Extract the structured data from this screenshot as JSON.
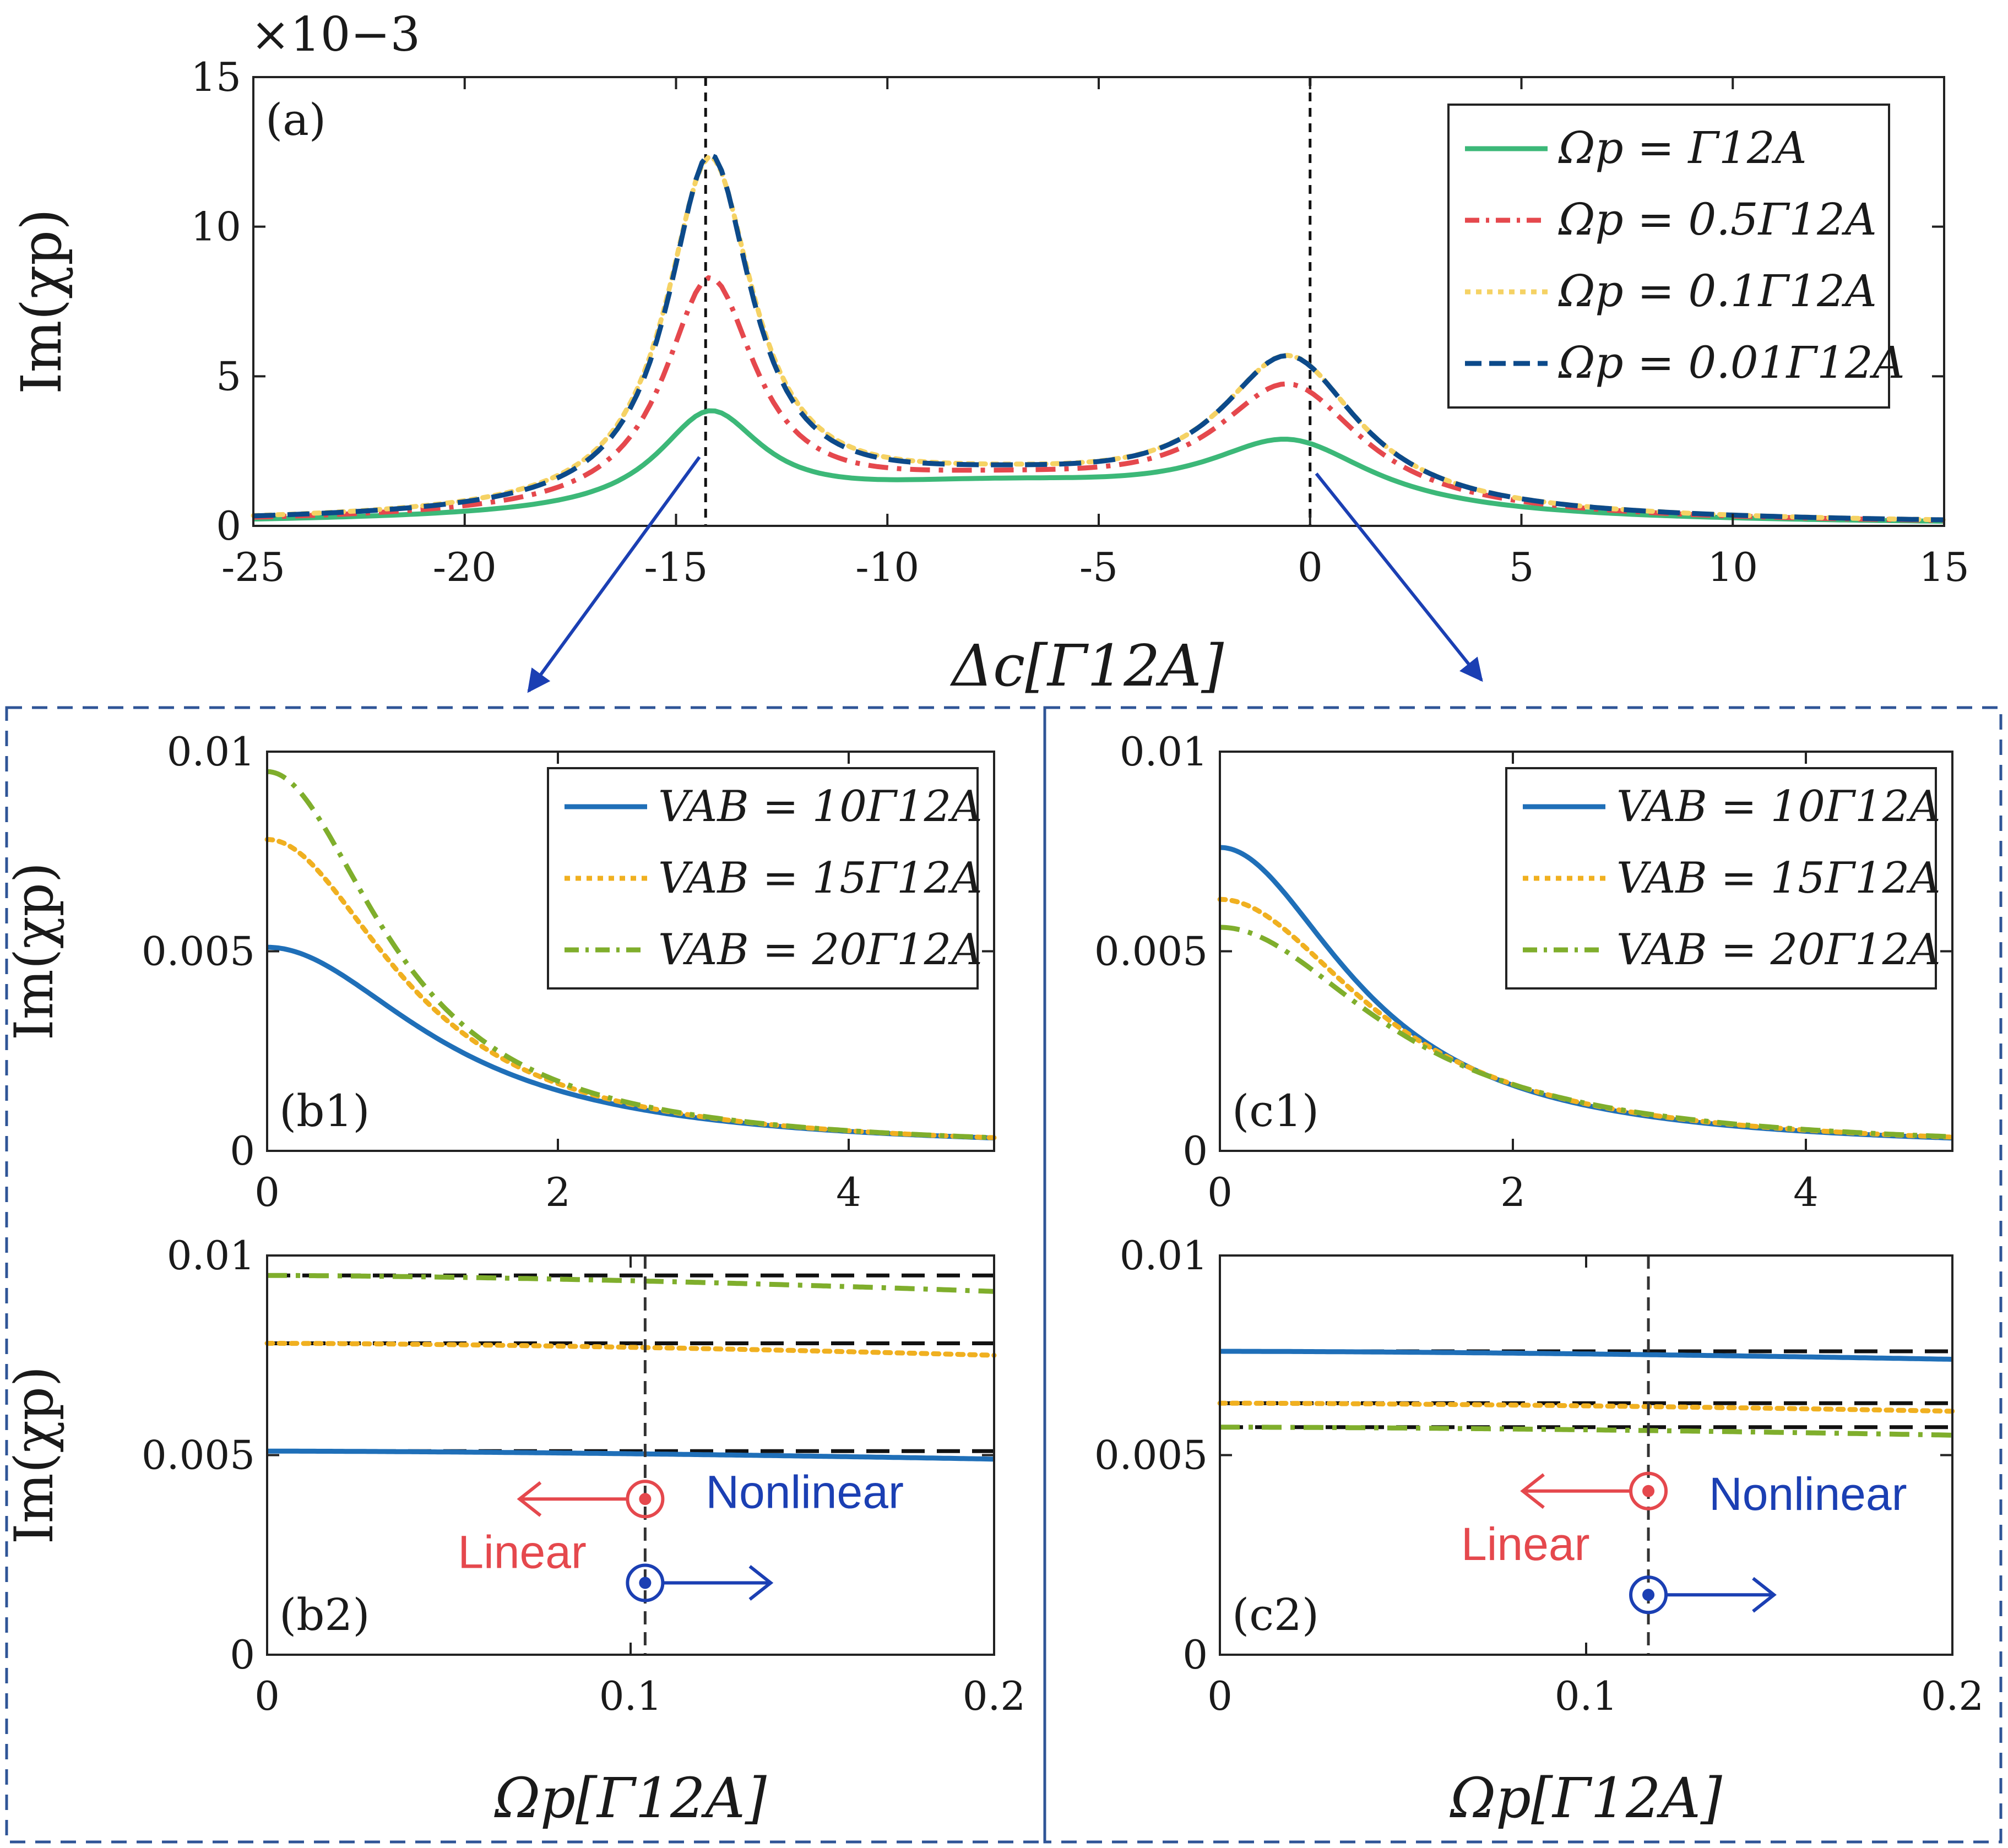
{
  "figure": {
    "colors": {
      "green_solid": "#3cb878",
      "red_dashdot": "#e5484d",
      "yellow_dot": "#f5d264",
      "navy_dash": "#0c4a8a",
      "blue_solid": "#1f6fb8",
      "orange_dot": "#f0b020",
      "lime_dashdot": "#7fae2c",
      "arrow_blue": "#1b3fb3",
      "linear_red": "#e5484d",
      "nonlinear_blue": "#1b3fb3",
      "frame_dash": "#2f5597"
    }
  },
  "chart_data": [
    {
      "id": "a",
      "type": "line",
      "panel_label": "(a)",
      "xlabel": "Δc[Γ12A]",
      "ylabel": "Im(χp)",
      "exponent_label": "×10−3",
      "xlim": [
        -25,
        15
      ],
      "ylim": [
        0,
        15
      ],
      "xticks": [
        -25,
        -20,
        -15,
        -10,
        -5,
        0,
        5,
        10,
        15
      ],
      "yticks": [
        0,
        5,
        10,
        15
      ],
      "vlines": [
        -14.3,
        0
      ],
      "legend": "top-right",
      "series": [
        {
          "name": "Ωp = Γ12A",
          "style": "solid",
          "color": "green_solid",
          "peaks": [
            {
              "center": -14.2,
              "height": 3.2,
              "width": 1.5
            },
            {
              "center": -0.5,
              "height": 2.3,
              "width": 2.4
            },
            {
              "center": -7.5,
              "height": 1.2,
              "width": 6.5
            }
          ]
        },
        {
          "name": "Ωp = 0.5Γ12A",
          "style": "dashdot",
          "color": "red_dashdot",
          "peaks": [
            {
              "center": -14.2,
              "height": 7.6,
              "width": 1.3
            },
            {
              "center": -0.5,
              "height": 4.1,
              "width": 2.1
            },
            {
              "center": -7.5,
              "height": 1.25,
              "width": 6.5
            }
          ]
        },
        {
          "name": "Ωp = 0.1Γ12A",
          "style": "dot",
          "color": "yellow_dot",
          "peaks": [
            {
              "center": -14.2,
              "height": 11.6,
              "width": 1.25
            },
            {
              "center": -0.5,
              "height": 5.0,
              "width": 2.0
            },
            {
              "center": -7.5,
              "height": 1.3,
              "width": 6.5
            }
          ]
        },
        {
          "name": "Ωp = 0.01Γ12A",
          "style": "dash",
          "color": "navy_dash",
          "peaks": [
            {
              "center": -14.2,
              "height": 11.7,
              "width": 1.2
            },
            {
              "center": -0.5,
              "height": 5.0,
              "width": 2.0
            },
            {
              "center": -7.5,
              "height": 1.3,
              "width": 6.5
            }
          ]
        }
      ]
    },
    {
      "id": "b1",
      "type": "line",
      "panel_label": "(b1)",
      "ylabel": "Im(χp)",
      "xlim": [
        0,
        5
      ],
      "ylim": [
        0,
        0.01
      ],
      "xticks": [
        0,
        2,
        4
      ],
      "yticks": [
        0,
        0.005,
        0.01
      ],
      "legend": "top-right",
      "series": [
        {
          "name": "VAB = 10Γ12A",
          "style": "solid",
          "color": "blue_solid",
          "peak": 0.0051,
          "width": 1.3
        },
        {
          "name": "VAB = 15Γ12A",
          "style": "dot",
          "color": "orange_dot",
          "peak": 0.0078,
          "width": 1.05
        },
        {
          "name": "VAB = 20Γ12A",
          "style": "dashdot",
          "color": "lime_dashdot",
          "peak": 0.0095,
          "width": 0.95
        }
      ]
    },
    {
      "id": "c1",
      "type": "line",
      "panel_label": "(c1)",
      "xlim": [
        0,
        5
      ],
      "ylim": [
        0,
        0.01
      ],
      "xticks": [
        0,
        2,
        4
      ],
      "yticks": [
        0,
        0.005,
        0.01
      ],
      "legend": "top-right",
      "series": [
        {
          "name": "VAB = 10Γ12A",
          "style": "solid",
          "color": "blue_solid",
          "peak": 0.0076,
          "width": 1.05
        },
        {
          "name": "VAB = 15Γ12A",
          "style": "dot",
          "color": "orange_dot",
          "peak": 0.0063,
          "width": 1.2
        },
        {
          "name": "VAB = 20Γ12A",
          "style": "dashdot",
          "color": "lime_dashdot",
          "peak": 0.0056,
          "width": 1.3
        }
      ]
    },
    {
      "id": "b2",
      "type": "line",
      "panel_label": "(b2)",
      "xlabel": "Ωp[Γ12A]",
      "ylabel": "Im(χp)",
      "xlim": [
        0,
        0.2
      ],
      "ylim": [
        0,
        0.01
      ],
      "xticks": [
        0,
        0.1,
        0.2
      ],
      "yticks": [
        0,
        0.005,
        0.01
      ],
      "vline": 0.104,
      "series": [
        {
          "name": "VAB = 10Γ12A",
          "style": "solid",
          "color": "blue_solid",
          "start": 0.0051,
          "end": 0.0049
        },
        {
          "name": "VAB = 15Γ12A",
          "style": "dot",
          "color": "orange_dot",
          "start": 0.0078,
          "end": 0.0075
        },
        {
          "name": "VAB = 20Γ12A",
          "style": "dashdot",
          "color": "lime_dashdot",
          "start": 0.0095,
          "end": 0.0091
        }
      ],
      "reference_lines": [
        0.0051,
        0.0078,
        0.0095
      ]
    },
    {
      "id": "c2",
      "type": "line",
      "panel_label": "(c2)",
      "xlabel": "Ωp[Γ12A]",
      "xlim": [
        0,
        0.2
      ],
      "ylim": [
        0,
        0.01
      ],
      "xticks": [
        0,
        0.1,
        0.2
      ],
      "yticks": [
        0,
        0.005,
        0.01
      ],
      "vline": 0.117,
      "series": [
        {
          "name": "VAB = 10Γ12A",
          "style": "solid",
          "color": "blue_solid",
          "start": 0.0076,
          "end": 0.0074
        },
        {
          "name": "VAB = 15Γ12A",
          "style": "dot",
          "color": "orange_dot",
          "start": 0.0063,
          "end": 0.0061
        },
        {
          "name": "VAB = 20Γ12A",
          "style": "dashdot",
          "color": "lime_dashdot",
          "start": 0.0057,
          "end": 0.0055
        }
      ],
      "reference_lines": [
        0.0076,
        0.0063,
        0.0057
      ]
    }
  ],
  "annotations": {
    "linear": "Linear",
    "nonlinear": "Nonlinear",
    "b2_linear_marker": 0.0039,
    "b2_nonlinear_marker": 0.0018,
    "c2_linear_marker": 0.0041,
    "c2_nonlinear_marker": 0.0015
  }
}
